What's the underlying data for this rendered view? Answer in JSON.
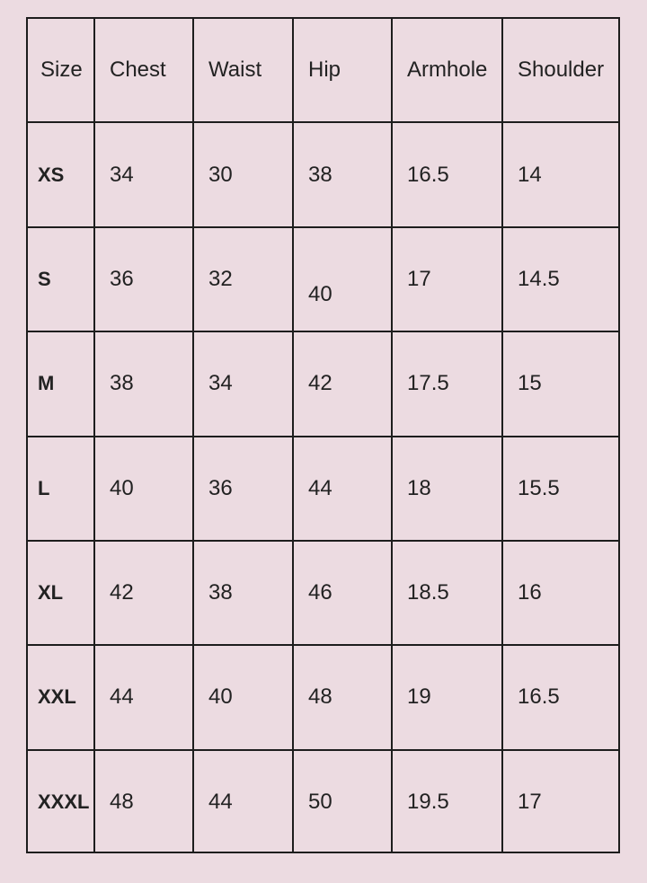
{
  "table": {
    "header": [
      "Size",
      "Chest",
      "Waist",
      "Hip",
      "Armhole",
      "Shoulder"
    ],
    "rows": [
      [
        "XS",
        "34",
        "30",
        "38",
        "16.5",
        "14"
      ],
      [
        "S",
        "36",
        "32",
        "40",
        "17",
        "14.5"
      ],
      [
        "M",
        "38",
        "34",
        "42",
        "17.5",
        "15"
      ],
      [
        "L",
        "40",
        "36",
        "44",
        "18",
        "15.5"
      ],
      [
        "XL",
        "42",
        "38",
        "46",
        "18.5",
        "16"
      ],
      [
        "XXL",
        "44",
        "40",
        "48",
        "19",
        "16.5"
      ],
      [
        "XXXL",
        "48",
        "44",
        "50",
        "19.5",
        "17"
      ]
    ]
  }
}
